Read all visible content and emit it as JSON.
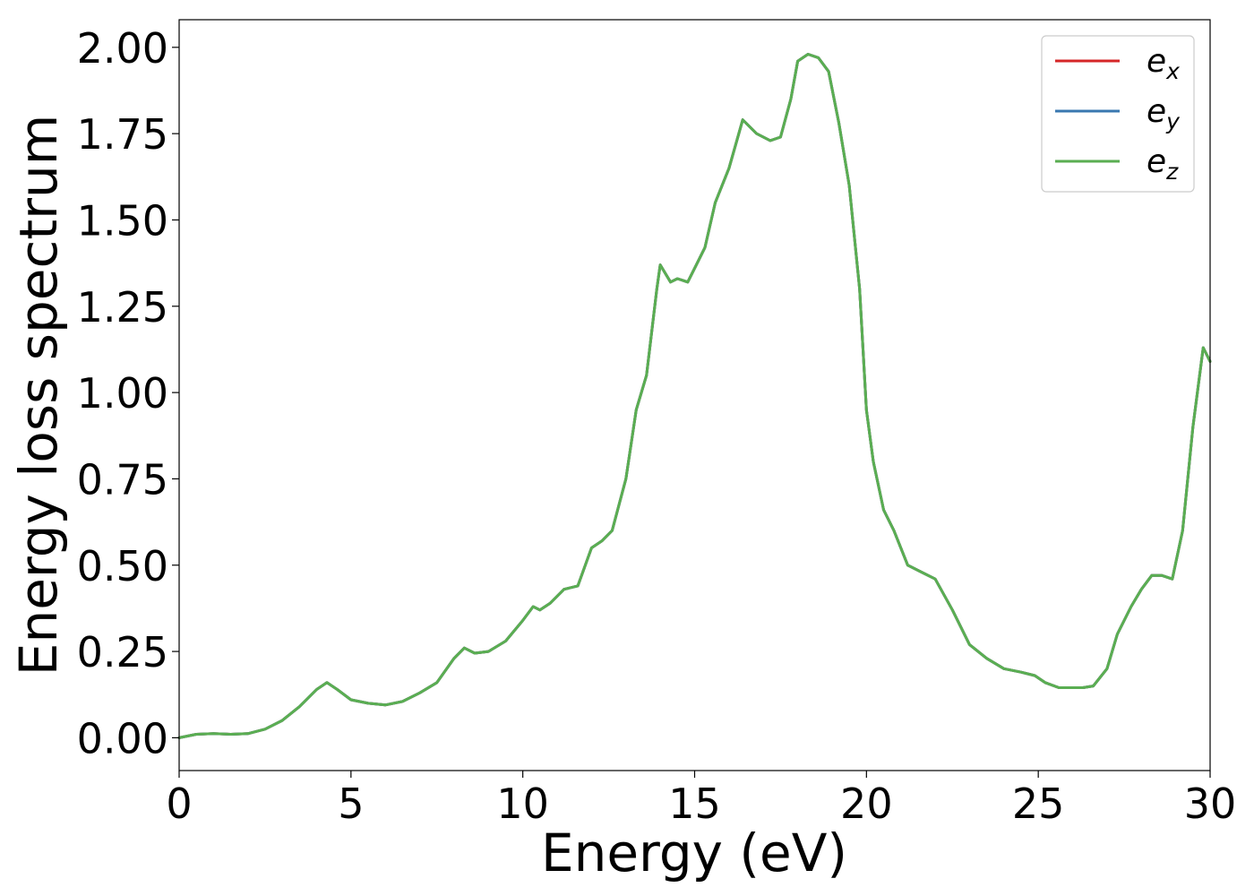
{
  "chart_data": {
    "type": "line",
    "title": "",
    "xlabel": "Energy (eV)",
    "ylabel": "Energy loss spectrum",
    "xlim": [
      0,
      30
    ],
    "ylim": [
      -0.095,
      2.08
    ],
    "x_ticks": [
      "0",
      "5",
      "10",
      "15",
      "20",
      "25",
      "30"
    ],
    "y_ticks": [
      "0.00",
      "0.25",
      "0.50",
      "0.75",
      "1.00",
      "1.25",
      "1.50",
      "1.75",
      "2.00"
    ],
    "grid": false,
    "legend_position": "top-right",
    "colors": {
      "e_x": "#d62728",
      "e_y": "#3a78b0",
      "e_z": "#5aae52"
    },
    "series": [
      {
        "name": "e_x",
        "label_base": "e",
        "label_sub": "x",
        "color_key": "e_x",
        "x": [
          0,
          0.5,
          1,
          1.5,
          2,
          2.5,
          3,
          3.5,
          4,
          4.3,
          4.6,
          5,
          5.5,
          6,
          6.5,
          7,
          7.5,
          8,
          8.3,
          8.6,
          9,
          9.5,
          10,
          10.3,
          10.5,
          10.8,
          11.2,
          11.6,
          12,
          12.3,
          12.6,
          13,
          13.3,
          13.6,
          13.9,
          14.0,
          14.3,
          14.5,
          14.8,
          15.0,
          15.3,
          15.6,
          16.0,
          16.4,
          16.8,
          17.2,
          17.5,
          17.8,
          18.0,
          18.3,
          18.6,
          18.9,
          19.2,
          19.5,
          19.8,
          20.0,
          20.2,
          20.5,
          20.8,
          21.2,
          21.6,
          22.0,
          22.5,
          23.0,
          23.5,
          24.0,
          24.5,
          24.9,
          25.2,
          25.6,
          26.0,
          26.3,
          26.6,
          27.0,
          27.3,
          27.7,
          28.0,
          28.3,
          28.6,
          28.9,
          29.2,
          29.5,
          29.8,
          30.0
        ],
        "y": [
          0.0,
          0.01,
          0.012,
          0.01,
          0.012,
          0.025,
          0.05,
          0.09,
          0.14,
          0.16,
          0.14,
          0.11,
          0.1,
          0.095,
          0.105,
          0.13,
          0.16,
          0.23,
          0.26,
          0.245,
          0.25,
          0.28,
          0.34,
          0.38,
          0.37,
          0.39,
          0.43,
          0.44,
          0.55,
          0.57,
          0.6,
          0.75,
          0.95,
          1.05,
          1.3,
          1.37,
          1.32,
          1.33,
          1.32,
          1.36,
          1.42,
          1.55,
          1.65,
          1.79,
          1.75,
          1.73,
          1.74,
          1.85,
          1.96,
          1.98,
          1.97,
          1.93,
          1.78,
          1.6,
          1.3,
          0.95,
          0.8,
          0.66,
          0.6,
          0.5,
          0.48,
          0.46,
          0.37,
          0.27,
          0.23,
          0.2,
          0.19,
          0.18,
          0.16,
          0.145,
          0.145,
          0.145,
          0.15,
          0.2,
          0.3,
          0.38,
          0.43,
          0.47,
          0.47,
          0.46,
          0.6,
          0.9,
          1.13,
          1.09
        ]
      },
      {
        "name": "e_y",
        "label_base": "e",
        "label_sub": "y",
        "color_key": "e_y",
        "x": [
          0,
          0.5,
          1,
          1.5,
          2,
          2.5,
          3,
          3.5,
          4,
          4.3,
          4.6,
          5,
          5.5,
          6,
          6.5,
          7,
          7.5,
          8,
          8.3,
          8.6,
          9,
          9.5,
          10,
          10.3,
          10.5,
          10.8,
          11.2,
          11.6,
          12,
          12.3,
          12.6,
          13,
          13.3,
          13.6,
          13.9,
          14.0,
          14.3,
          14.5,
          14.8,
          15.0,
          15.3,
          15.6,
          16.0,
          16.4,
          16.8,
          17.2,
          17.5,
          17.8,
          18.0,
          18.3,
          18.6,
          18.9,
          19.2,
          19.5,
          19.8,
          20.0,
          20.2,
          20.5,
          20.8,
          21.2,
          21.6,
          22.0,
          22.5,
          23.0,
          23.5,
          24.0,
          24.5,
          24.9,
          25.2,
          25.6,
          26.0,
          26.3,
          26.6,
          27.0,
          27.3,
          27.7,
          28.0,
          28.3,
          28.6,
          28.9,
          29.2,
          29.5,
          29.8,
          30.0
        ],
        "y": [
          0.0,
          0.01,
          0.012,
          0.01,
          0.012,
          0.025,
          0.05,
          0.09,
          0.14,
          0.16,
          0.14,
          0.11,
          0.1,
          0.095,
          0.105,
          0.13,
          0.16,
          0.23,
          0.26,
          0.245,
          0.25,
          0.28,
          0.34,
          0.38,
          0.37,
          0.39,
          0.43,
          0.44,
          0.55,
          0.57,
          0.6,
          0.75,
          0.95,
          1.05,
          1.3,
          1.37,
          1.32,
          1.33,
          1.32,
          1.36,
          1.42,
          1.55,
          1.65,
          1.79,
          1.75,
          1.73,
          1.74,
          1.85,
          1.96,
          1.98,
          1.97,
          1.93,
          1.78,
          1.6,
          1.3,
          0.95,
          0.8,
          0.66,
          0.6,
          0.5,
          0.48,
          0.46,
          0.37,
          0.27,
          0.23,
          0.2,
          0.19,
          0.18,
          0.16,
          0.145,
          0.145,
          0.145,
          0.15,
          0.2,
          0.3,
          0.38,
          0.43,
          0.47,
          0.47,
          0.46,
          0.6,
          0.9,
          1.13,
          1.09
        ]
      },
      {
        "name": "e_z",
        "label_base": "e",
        "label_sub": "z",
        "color_key": "e_z",
        "x": [
          0,
          0.5,
          1,
          1.5,
          2,
          2.5,
          3,
          3.5,
          4,
          4.3,
          4.6,
          5,
          5.5,
          6,
          6.5,
          7,
          7.5,
          8,
          8.3,
          8.6,
          9,
          9.5,
          10,
          10.3,
          10.5,
          10.8,
          11.2,
          11.6,
          12,
          12.3,
          12.6,
          13,
          13.3,
          13.6,
          13.9,
          14.0,
          14.3,
          14.5,
          14.8,
          15.0,
          15.3,
          15.6,
          16.0,
          16.4,
          16.8,
          17.2,
          17.5,
          17.8,
          18.0,
          18.3,
          18.6,
          18.9,
          19.2,
          19.5,
          19.8,
          20.0,
          20.2,
          20.5,
          20.8,
          21.2,
          21.6,
          22.0,
          22.5,
          23.0,
          23.5,
          24.0,
          24.5,
          24.9,
          25.2,
          25.6,
          26.0,
          26.3,
          26.6,
          27.0,
          27.3,
          27.7,
          28.0,
          28.3,
          28.6,
          28.9,
          29.2,
          29.5,
          29.8,
          30.0
        ],
        "y": [
          0.0,
          0.01,
          0.012,
          0.01,
          0.012,
          0.025,
          0.05,
          0.09,
          0.14,
          0.16,
          0.14,
          0.11,
          0.1,
          0.095,
          0.105,
          0.13,
          0.16,
          0.23,
          0.26,
          0.245,
          0.25,
          0.28,
          0.34,
          0.38,
          0.37,
          0.39,
          0.43,
          0.44,
          0.55,
          0.57,
          0.6,
          0.75,
          0.95,
          1.05,
          1.3,
          1.37,
          1.32,
          1.33,
          1.32,
          1.36,
          1.42,
          1.55,
          1.65,
          1.79,
          1.75,
          1.73,
          1.74,
          1.85,
          1.96,
          1.98,
          1.97,
          1.93,
          1.78,
          1.6,
          1.3,
          0.95,
          0.8,
          0.66,
          0.6,
          0.5,
          0.48,
          0.46,
          0.37,
          0.27,
          0.23,
          0.2,
          0.19,
          0.18,
          0.16,
          0.145,
          0.145,
          0.145,
          0.15,
          0.2,
          0.3,
          0.38,
          0.43,
          0.47,
          0.47,
          0.46,
          0.6,
          0.9,
          1.13,
          1.09
        ]
      }
    ]
  }
}
